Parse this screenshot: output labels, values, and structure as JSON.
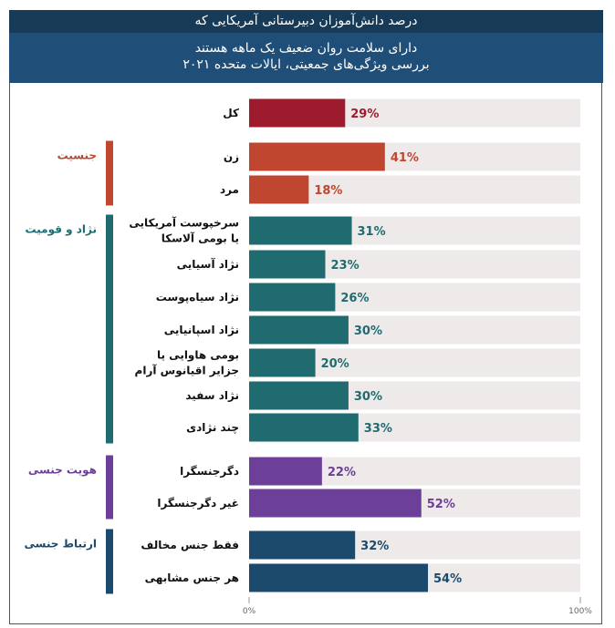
{
  "header": {
    "line1": "درصد دانش‌آموزان دبیرستانی آمریکایی که",
    "line2": "دارای سلامت روان ضعیف یک ماهه هستند",
    "line3": "بررسی ویژگی‌های جمعیتی، ایالات متحده ۲۰۲۱"
  },
  "chart_data": {
    "type": "bar",
    "orientation": "horizontal",
    "xlim": [
      0,
      100
    ],
    "x_ticks": [
      "0%",
      "100%"
    ],
    "groups": [
      {
        "name": "",
        "color": "#9e1b2e",
        "items": [
          {
            "label": [
              "کل"
            ],
            "value": 29
          }
        ]
      },
      {
        "name": "جنسیت",
        "color": "#c0462f",
        "items": [
          {
            "label": [
              "زن"
            ],
            "value": 41
          },
          {
            "label": [
              "مرد"
            ],
            "value": 18
          }
        ]
      },
      {
        "name": "نژاد و قومیت",
        "color": "#1f6b6f",
        "items": [
          {
            "label": [
              "سرخپوست آمریکایی",
              "یا بومی آلاسکا"
            ],
            "value": 31
          },
          {
            "label": [
              "نژاد آسیایی"
            ],
            "value": 23
          },
          {
            "label": [
              "نژاد سیاه‌پوست"
            ],
            "value": 26
          },
          {
            "label": [
              "نژاد اسپانیایی"
            ],
            "value": 30
          },
          {
            "label": [
              "بومی هاوایی یا",
              "جزایر اقیانوس آرام"
            ],
            "value": 20
          },
          {
            "label": [
              "نژاد سفید"
            ],
            "value": 30
          },
          {
            "label": [
              "چند نژادی"
            ],
            "value": 33
          }
        ]
      },
      {
        "name": "هویت جنسی",
        "color": "#6c3f98",
        "items": [
          {
            "label": [
              "دگرجنسگرا"
            ],
            "value": 22
          },
          {
            "label": [
              "غیر دگرجنسگرا"
            ],
            "value": 52
          }
        ]
      },
      {
        "name": "ارتباط جنسی",
        "color": "#1c4a6d",
        "items": [
          {
            "label": [
              "فقط جنس مخالف"
            ],
            "value": 32
          },
          {
            "label": [
              "هر جنس مشابهی"
            ],
            "value": 54
          }
        ]
      }
    ],
    "track_color": "#eeeaea"
  }
}
